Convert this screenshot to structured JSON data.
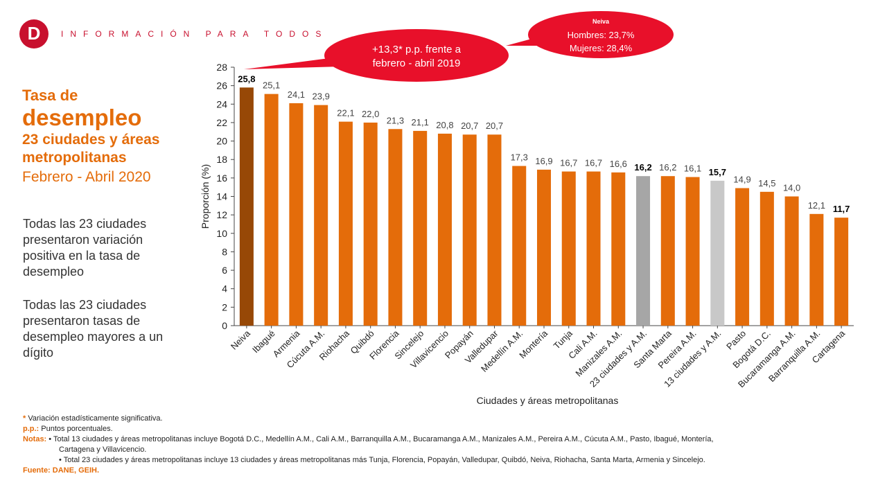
{
  "header": {
    "logo_letter": "D",
    "tagline": "INFORMACIÓN PARA TODOS"
  },
  "title": {
    "line1": "Tasa de",
    "line2": "desempleo",
    "line3": "23 ciudades y áreas",
    "line4": "metropolitanas",
    "line5": "Febrero - Abril 2020"
  },
  "paragraphs": {
    "p1": "Todas las 23 ciudades presentaron variación positiva en la tasa de desempleo",
    "p2": "Todas las 23 ciudades presentaron tasas de desempleo mayores a un dígito"
  },
  "callouts": {
    "left_line1": "+13,3* p.p. frente a",
    "left_line2": "febrero - abril 2019",
    "right_title": "Neiva",
    "right_line1": "Hombres: 23,7%",
    "right_line2": "Mujeres: 28,4%"
  },
  "colors": {
    "bar": "#e46c0a",
    "bar_highlight": "#974806",
    "bar_total23": "#a6a6a6",
    "bar_total13": "#c8c8c8",
    "callout": "#e8102a",
    "logo": "#c8102e",
    "accent": "#e46c0a"
  },
  "chart_data": {
    "type": "bar",
    "ylabel": "Proporción (%)",
    "xlabel": "Ciudades y áreas metropolitanas",
    "ylim": [
      0,
      28
    ],
    "yticks": [
      0,
      2,
      4,
      6,
      8,
      10,
      12,
      14,
      16,
      18,
      20,
      22,
      24,
      26,
      28
    ],
    "categories": [
      "Neiva",
      "Ibagué",
      "Armenia",
      "Cúcuta A.M.",
      "Riohacha",
      "Quibdó",
      "Florencia",
      "Sincelejo",
      "Villavicencio",
      "Popayán",
      "Valledupar",
      "Medellín A.M.",
      "Montería",
      "Tunja",
      "Cali A.M.",
      "Manizales A.M.",
      "23 ciudades y A.M.",
      "Santa Marta",
      "Pereira A.M.",
      "13 ciudades y A.M.",
      "Pasto",
      "Bogotá D.C.",
      "Bucaramanga A.M.",
      "Barranquilla A.M.",
      "Cartagena"
    ],
    "values": [
      25.8,
      25.1,
      24.1,
      23.9,
      22.1,
      22.0,
      21.3,
      21.1,
      20.8,
      20.7,
      20.7,
      17.3,
      16.9,
      16.7,
      16.7,
      16.6,
      16.2,
      16.2,
      16.1,
      15.7,
      14.9,
      14.5,
      14.0,
      12.1,
      11.7
    ],
    "labels": [
      "25,8",
      "25,1",
      "24,1",
      "23,9",
      "22,1",
      "22,0",
      "21,3",
      "21,1",
      "20,8",
      "20,7",
      "20,7",
      "17,3",
      "16,9",
      "16,7",
      "16,7",
      "16,6",
      "16,2",
      "16,2",
      "16,1",
      "15,7",
      "14,9",
      "14,5",
      "14,0",
      "12,1",
      "11,7"
    ],
    "bold_labels": [
      0,
      16,
      19,
      24
    ],
    "highlight_index": 0,
    "total23_index": 16,
    "total13_index": 19
  },
  "notes": {
    "star": "*",
    "star_text": " Variación estadísticamente significativa.",
    "pp_label": "p.p.:",
    "pp_text": " Puntos porcentuales.",
    "notas_label": "Notas:",
    "note1a": "• Total 13 ciudades y áreas metropolitanas incluye Bogotá D.C., Medellín A.M., Cali A.M., Barranquilla A.M., Bucaramanga A.M., Manizales A.M., Pereira A.M., Cúcuta A.M., Pasto, Ibagué, Montería,",
    "note1b": "Cartagena y Villavicencio.",
    "note2": "• Total 23 ciudades y áreas metropolitanas incluye 13 ciudades y áreas metropolitanas más Tunja, Florencia, Popayán, Valledupar, Quibdó, Neiva, Riohacha, Santa Marta, Armenia y Sincelejo.",
    "fuente_label": "Fuente:",
    "fuente_text": " DANE, GEIH."
  }
}
